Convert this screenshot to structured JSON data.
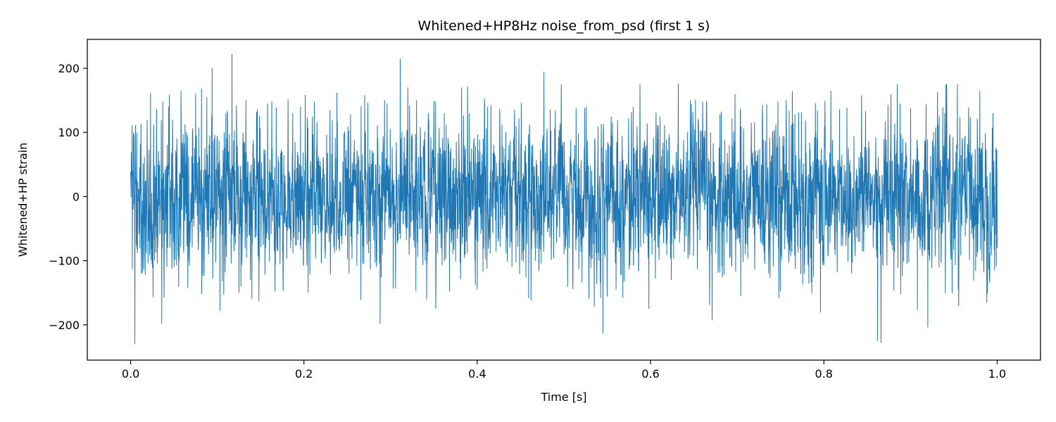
{
  "chart_data": {
    "type": "line",
    "title": "Whitened+HP8Hz noise_from_psd (first 1 s)",
    "xlabel": "Time [s]",
    "ylabel": "Whitened+HP strain",
    "xlim": [
      -0.05,
      1.05
    ],
    "ylim": [
      -255,
      245
    ],
    "xticks": [
      0.0,
      0.2,
      0.4,
      0.6,
      0.8,
      1.0
    ],
    "xtick_labels": [
      "0.0",
      "0.2",
      "0.4",
      "0.6",
      "0.8",
      "1.0"
    ],
    "yticks": [
      -200,
      -100,
      0,
      100,
      200
    ],
    "ytick_labels": [
      "−200",
      "−100",
      "0",
      "100",
      "200"
    ],
    "grid": false,
    "legend": "none",
    "line_color": "#1f77b4",
    "series": [
      {
        "x_start": 0.0,
        "x_end": 1.0,
        "n_points": 4096,
        "approx_std": 55,
        "peaks": [
          [
            0.0,
            38
          ],
          [
            0.002,
            -113
          ],
          [
            0.004,
            95
          ],
          [
            0.005,
            -230
          ],
          [
            0.007,
            100
          ],
          [
            0.012,
            113
          ],
          [
            0.02,
            -104
          ],
          [
            0.023,
            162
          ],
          [
            0.026,
            -157
          ],
          [
            0.03,
            136
          ],
          [
            0.036,
            -198
          ],
          [
            0.044,
            140
          ],
          [
            0.05,
            -110
          ],
          [
            0.058,
            165
          ],
          [
            0.066,
            -142
          ],
          [
            0.075,
            160
          ],
          [
            0.082,
            -152
          ],
          [
            0.088,
            155
          ],
          [
            0.094,
            200
          ],
          [
            0.103,
            -178
          ],
          [
            0.11,
            130
          ],
          [
            0.117,
            222
          ],
          [
            0.125,
            -150
          ],
          [
            0.133,
            150
          ],
          [
            0.14,
            -160
          ],
          [
            0.148,
            -163
          ],
          [
            0.158,
            145
          ],
          [
            0.168,
            139
          ],
          [
            0.176,
            -147
          ],
          [
            0.187,
            130
          ],
          [
            0.196,
            140
          ],
          [
            0.205,
            -150
          ],
          [
            0.212,
            148
          ],
          [
            0.22,
            -104
          ],
          [
            0.23,
            135
          ],
          [
            0.238,
            162
          ],
          [
            0.252,
            -120
          ],
          [
            0.266,
            141
          ],
          [
            0.27,
            158
          ],
          [
            0.282,
            -103
          ],
          [
            0.288,
            -198
          ],
          [
            0.296,
            145
          ],
          [
            0.303,
            -143
          ],
          [
            0.311,
            215
          ],
          [
            0.32,
            170
          ],
          [
            0.33,
            150
          ],
          [
            0.34,
            -100
          ],
          [
            0.352,
            148
          ],
          [
            0.362,
            130
          ],
          [
            0.372,
            -90
          ],
          [
            0.382,
            170
          ],
          [
            0.391,
            130
          ],
          [
            0.4,
            -145
          ],
          [
            0.412,
            140
          ],
          [
            0.426,
            137
          ],
          [
            0.44,
            -110
          ],
          [
            0.448,
            122
          ],
          [
            0.462,
            -162
          ],
          [
            0.477,
            194
          ],
          [
            0.49,
            134
          ],
          [
            0.5,
            -90
          ],
          [
            0.514,
            138
          ],
          [
            0.524,
            138
          ],
          [
            0.535,
            -172
          ],
          [
            0.545,
            -213
          ],
          [
            0.556,
            115
          ],
          [
            0.568,
            -158
          ],
          [
            0.58,
            140
          ],
          [
            0.596,
            114
          ],
          [
            0.611,
            125
          ],
          [
            0.624,
            -130
          ],
          [
            0.632,
            176
          ],
          [
            0.646,
            150
          ],
          [
            0.66,
            148
          ],
          [
            0.671,
            -193
          ],
          [
            0.68,
            128
          ],
          [
            0.694,
            122
          ],
          [
            0.704,
            -155
          ],
          [
            0.72,
            116
          ],
          [
            0.734,
            144
          ],
          [
            0.748,
            -158
          ],
          [
            0.76,
            134
          ],
          [
            0.774,
            131
          ],
          [
            0.788,
            -125
          ],
          [
            0.796,
            -181
          ],
          [
            0.808,
            165
          ],
          [
            0.818,
            136
          ],
          [
            0.832,
            -120
          ],
          [
            0.848,
            133
          ],
          [
            0.862,
            -225
          ],
          [
            0.866,
            -228
          ],
          [
            0.874,
            143
          ],
          [
            0.888,
            145
          ],
          [
            0.896,
            -105
          ],
          [
            0.908,
            -177
          ],
          [
            0.92,
            -204
          ],
          [
            0.933,
            125
          ],
          [
            0.942,
            125
          ],
          [
            0.955,
            -145
          ],
          [
            0.967,
            139
          ],
          [
            0.975,
            -116
          ],
          [
            0.98,
            165
          ],
          [
            0.988,
            -165
          ],
          [
            0.995,
            130
          ],
          [
            1.0,
            -80
          ]
        ]
      }
    ]
  }
}
